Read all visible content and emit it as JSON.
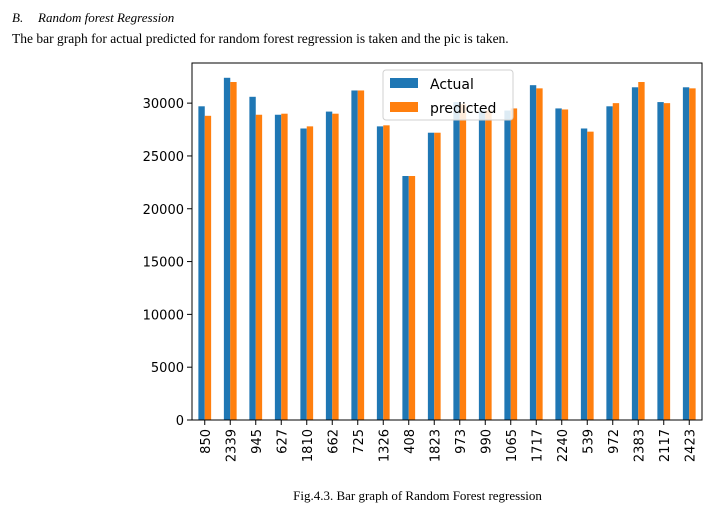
{
  "section": {
    "number": "B.",
    "title": "Random forest Regression"
  },
  "intro_text": "The bar graph for actual predicted for random forest regression is taken and the pic is taken.",
  "caption": "Fig.4.3. Bar graph of Random Forest regression",
  "chart_data": {
    "type": "bar",
    "title": "",
    "xlabel": "",
    "ylabel": "",
    "categories": [
      "850",
      "2339",
      "945",
      "627",
      "1810",
      "662",
      "725",
      "1326",
      "408",
      "1823",
      "973",
      "990",
      "1065",
      "1717",
      "2240",
      "539",
      "972",
      "2383",
      "2117",
      "2423"
    ],
    "series": [
      {
        "name": "Actual",
        "color": "#1f77b4",
        "values": [
          29700,
          32400,
          30600,
          28900,
          27600,
          29200,
          31200,
          27800,
          23100,
          27200,
          30100,
          29300,
          29300,
          31700,
          29500,
          27600,
          29700,
          31500,
          30100,
          31500
        ]
      },
      {
        "name": "predicted",
        "color": "#ff7f0e",
        "values": [
          28800,
          32000,
          28900,
          29000,
          27800,
          29000,
          31200,
          27900,
          23100,
          27200,
          29900,
          29300,
          29500,
          31400,
          29400,
          27300,
          30000,
          32000,
          30000,
          31400
        ]
      }
    ],
    "ylim": [
      0,
      33800
    ],
    "yticks": [
      0,
      5000,
      10000,
      15000,
      20000,
      25000,
      30000
    ],
    "grid": false,
    "legend_position": "top-center"
  }
}
